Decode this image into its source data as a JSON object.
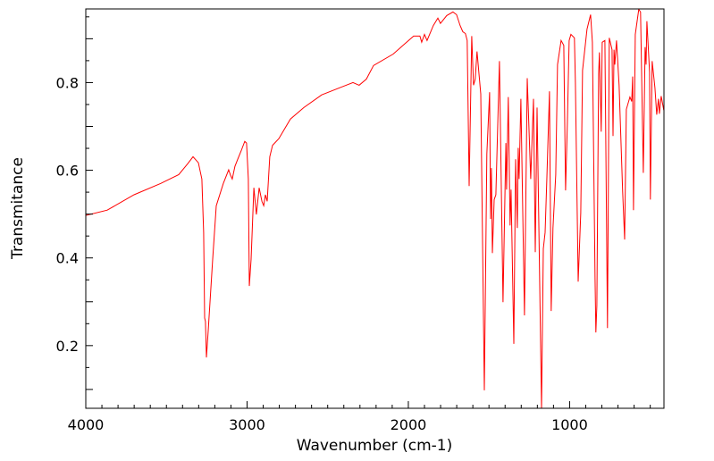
{
  "chart_data": {
    "type": "line",
    "title": "",
    "xlabel": "Wavenumber (cm-1)",
    "ylabel": "Transmitance",
    "xlim": [
      4000,
      415
    ],
    "ylim": [
      0.057,
      0.968
    ],
    "x_reversed": true,
    "grid": false,
    "xticks": [
      4000,
      3000,
      2000,
      1000
    ],
    "xtick_labels": [
      "4000",
      "3000",
      "2000",
      "1000"
    ],
    "yticks": [
      0.2,
      0.4,
      0.6,
      0.8
    ],
    "ytick_labels": [
      "0.2",
      "0.4",
      "0.6",
      "0.8"
    ],
    "series": [
      {
        "name": "spectrum",
        "color": "#ff0000",
        "points": [
          [
            4000,
            0.497
          ],
          [
            3867,
            0.509
          ],
          [
            3701,
            0.544
          ],
          [
            3535,
            0.57
          ],
          [
            3424,
            0.59
          ],
          [
            3368,
            0.615
          ],
          [
            3335,
            0.631
          ],
          [
            3302,
            0.617
          ],
          [
            3280,
            0.58
          ],
          [
            3269,
            0.458
          ],
          [
            3263,
            0.263
          ],
          [
            3258,
            0.255
          ],
          [
            3252,
            0.173
          ],
          [
            3241,
            0.234
          ],
          [
            3213,
            0.397
          ],
          [
            3191,
            0.519
          ],
          [
            3147,
            0.57
          ],
          [
            3114,
            0.601
          ],
          [
            3103,
            0.589
          ],
          [
            3092,
            0.58
          ],
          [
            3075,
            0.609
          ],
          [
            3058,
            0.625
          ],
          [
            3036,
            0.645
          ],
          [
            3014,
            0.666
          ],
          [
            3003,
            0.662
          ],
          [
            2992,
            0.58
          ],
          [
            2986,
            0.336
          ],
          [
            2975,
            0.397
          ],
          [
            2958,
            0.56
          ],
          [
            2942,
            0.499
          ],
          [
            2925,
            0.56
          ],
          [
            2908,
            0.529
          ],
          [
            2897,
            0.519
          ],
          [
            2886,
            0.544
          ],
          [
            2875,
            0.529
          ],
          [
            2859,
            0.631
          ],
          [
            2842,
            0.657
          ],
          [
            2803,
            0.672
          ],
          [
            2731,
            0.717
          ],
          [
            2648,
            0.743
          ],
          [
            2537,
            0.772
          ],
          [
            2427,
            0.788
          ],
          [
            2343,
            0.8
          ],
          [
            2305,
            0.794
          ],
          [
            2260,
            0.808
          ],
          [
            2216,
            0.839
          ],
          [
            2094,
            0.865
          ],
          [
            2011,
            0.892
          ],
          [
            1967,
            0.906
          ],
          [
            1928,
            0.906
          ],
          [
            1917,
            0.892
          ],
          [
            1900,
            0.91
          ],
          [
            1884,
            0.896
          ],
          [
            1845,
            0.93
          ],
          [
            1817,
            0.947
          ],
          [
            1801,
            0.935
          ],
          [
            1762,
            0.953
          ],
          [
            1723,
            0.961
          ],
          [
            1701,
            0.955
          ],
          [
            1679,
            0.93
          ],
          [
            1662,
            0.916
          ],
          [
            1646,
            0.912
          ],
          [
            1635,
            0.896
          ],
          [
            1623,
            0.564
          ],
          [
            1607,
            0.906
          ],
          [
            1596,
            0.794
          ],
          [
            1585,
            0.808
          ],
          [
            1574,
            0.871
          ],
          [
            1551,
            0.774
          ],
          [
            1529,
            0.098
          ],
          [
            1513,
            0.637
          ],
          [
            1496,
            0.778
          ],
          [
            1490,
            0.489
          ],
          [
            1485,
            0.605
          ],
          [
            1479,
            0.411
          ],
          [
            1468,
            0.533
          ],
          [
            1457,
            0.544
          ],
          [
            1435,
            0.849
          ],
          [
            1413,
            0.299
          ],
          [
            1395,
            0.662
          ],
          [
            1391,
            0.556
          ],
          [
            1380,
            0.767
          ],
          [
            1369,
            0.474
          ],
          [
            1363,
            0.556
          ],
          [
            1346,
            0.204
          ],
          [
            1335,
            0.625
          ],
          [
            1324,
            0.468
          ],
          [
            1319,
            0.651
          ],
          [
            1313,
            0.58
          ],
          [
            1302,
            0.763
          ],
          [
            1280,
            0.269
          ],
          [
            1263,
            0.81
          ],
          [
            1241,
            0.58
          ],
          [
            1224,
            0.763
          ],
          [
            1213,
            0.413
          ],
          [
            1202,
            0.743
          ],
          [
            1191,
            0.474
          ],
          [
            1174,
            0.057
          ],
          [
            1163,
            0.421
          ],
          [
            1152,
            0.458
          ],
          [
            1141,
            0.584
          ],
          [
            1125,
            0.78
          ],
          [
            1114,
            0.279
          ],
          [
            1103,
            0.468
          ],
          [
            1086,
            0.59
          ],
          [
            1075,
            0.841
          ],
          [
            1053,
            0.896
          ],
          [
            1036,
            0.885
          ],
          [
            1025,
            0.554
          ],
          [
            1014,
            0.706
          ],
          [
            1003,
            0.896
          ],
          [
            992,
            0.91
          ],
          [
            970,
            0.902
          ],
          [
            964,
            0.8
          ],
          [
            947,
            0.346
          ],
          [
            931,
            0.503
          ],
          [
            920,
            0.828
          ],
          [
            892,
            0.922
          ],
          [
            870,
            0.955
          ],
          [
            859,
            0.892
          ],
          [
            842,
            0.352
          ],
          [
            837,
            0.23
          ],
          [
            831,
            0.291
          ],
          [
            820,
            0.82
          ],
          [
            815,
            0.869
          ],
          [
            804,
            0.688
          ],
          [
            798,
            0.892
          ],
          [
            781,
            0.896
          ],
          [
            765,
            0.24
          ],
          [
            754,
            0.902
          ],
          [
            737,
            0.875
          ],
          [
            731,
            0.678
          ],
          [
            725,
            0.875
          ],
          [
            720,
            0.841
          ],
          [
            709,
            0.896
          ],
          [
            693,
            0.794
          ],
          [
            671,
            0.55
          ],
          [
            659,
            0.442
          ],
          [
            648,
            0.739
          ],
          [
            626,
            0.767
          ],
          [
            615,
            0.757
          ],
          [
            609,
            0.814
          ],
          [
            604,
            0.509
          ],
          [
            593,
            0.91
          ],
          [
            571,
            0.967
          ],
          [
            560,
            0.961
          ],
          [
            543,
            0.594
          ],
          [
            532,
            0.881
          ],
          [
            526,
            0.841
          ],
          [
            521,
            0.94
          ],
          [
            504,
            0.824
          ],
          [
            499,
            0.533
          ],
          [
            488,
            0.849
          ],
          [
            471,
            0.788
          ],
          [
            460,
            0.727
          ],
          [
            449,
            0.763
          ],
          [
            443,
            0.729
          ],
          [
            432,
            0.769
          ],
          [
            416,
            0.737
          ]
        ]
      }
    ]
  }
}
